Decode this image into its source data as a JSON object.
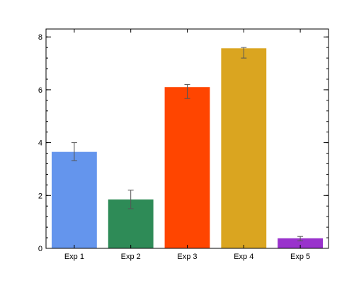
{
  "chart_data": {
    "type": "bar",
    "title": "",
    "xlabel": "",
    "ylabel": "",
    "categories": [
      "Exp 1",
      "Exp 2",
      "Exp 3",
      "Exp 4",
      "Exp 5"
    ],
    "values": [
      3.65,
      1.85,
      6.1,
      7.57,
      0.38
    ],
    "error_low": [
      3.32,
      1.5,
      5.67,
      7.2,
      0.28
    ],
    "error_high": [
      4.0,
      2.2,
      6.2,
      7.6,
      0.45
    ],
    "colors": [
      "#6495ED",
      "#2E8B57",
      "#FF4500",
      "#DAA520",
      "#9932CC"
    ],
    "ylim": [
      0,
      8.3
    ],
    "yticks": [
      0,
      2,
      4,
      6,
      8
    ],
    "yminor_step": 0.4,
    "grid": false,
    "legend": "none"
  }
}
